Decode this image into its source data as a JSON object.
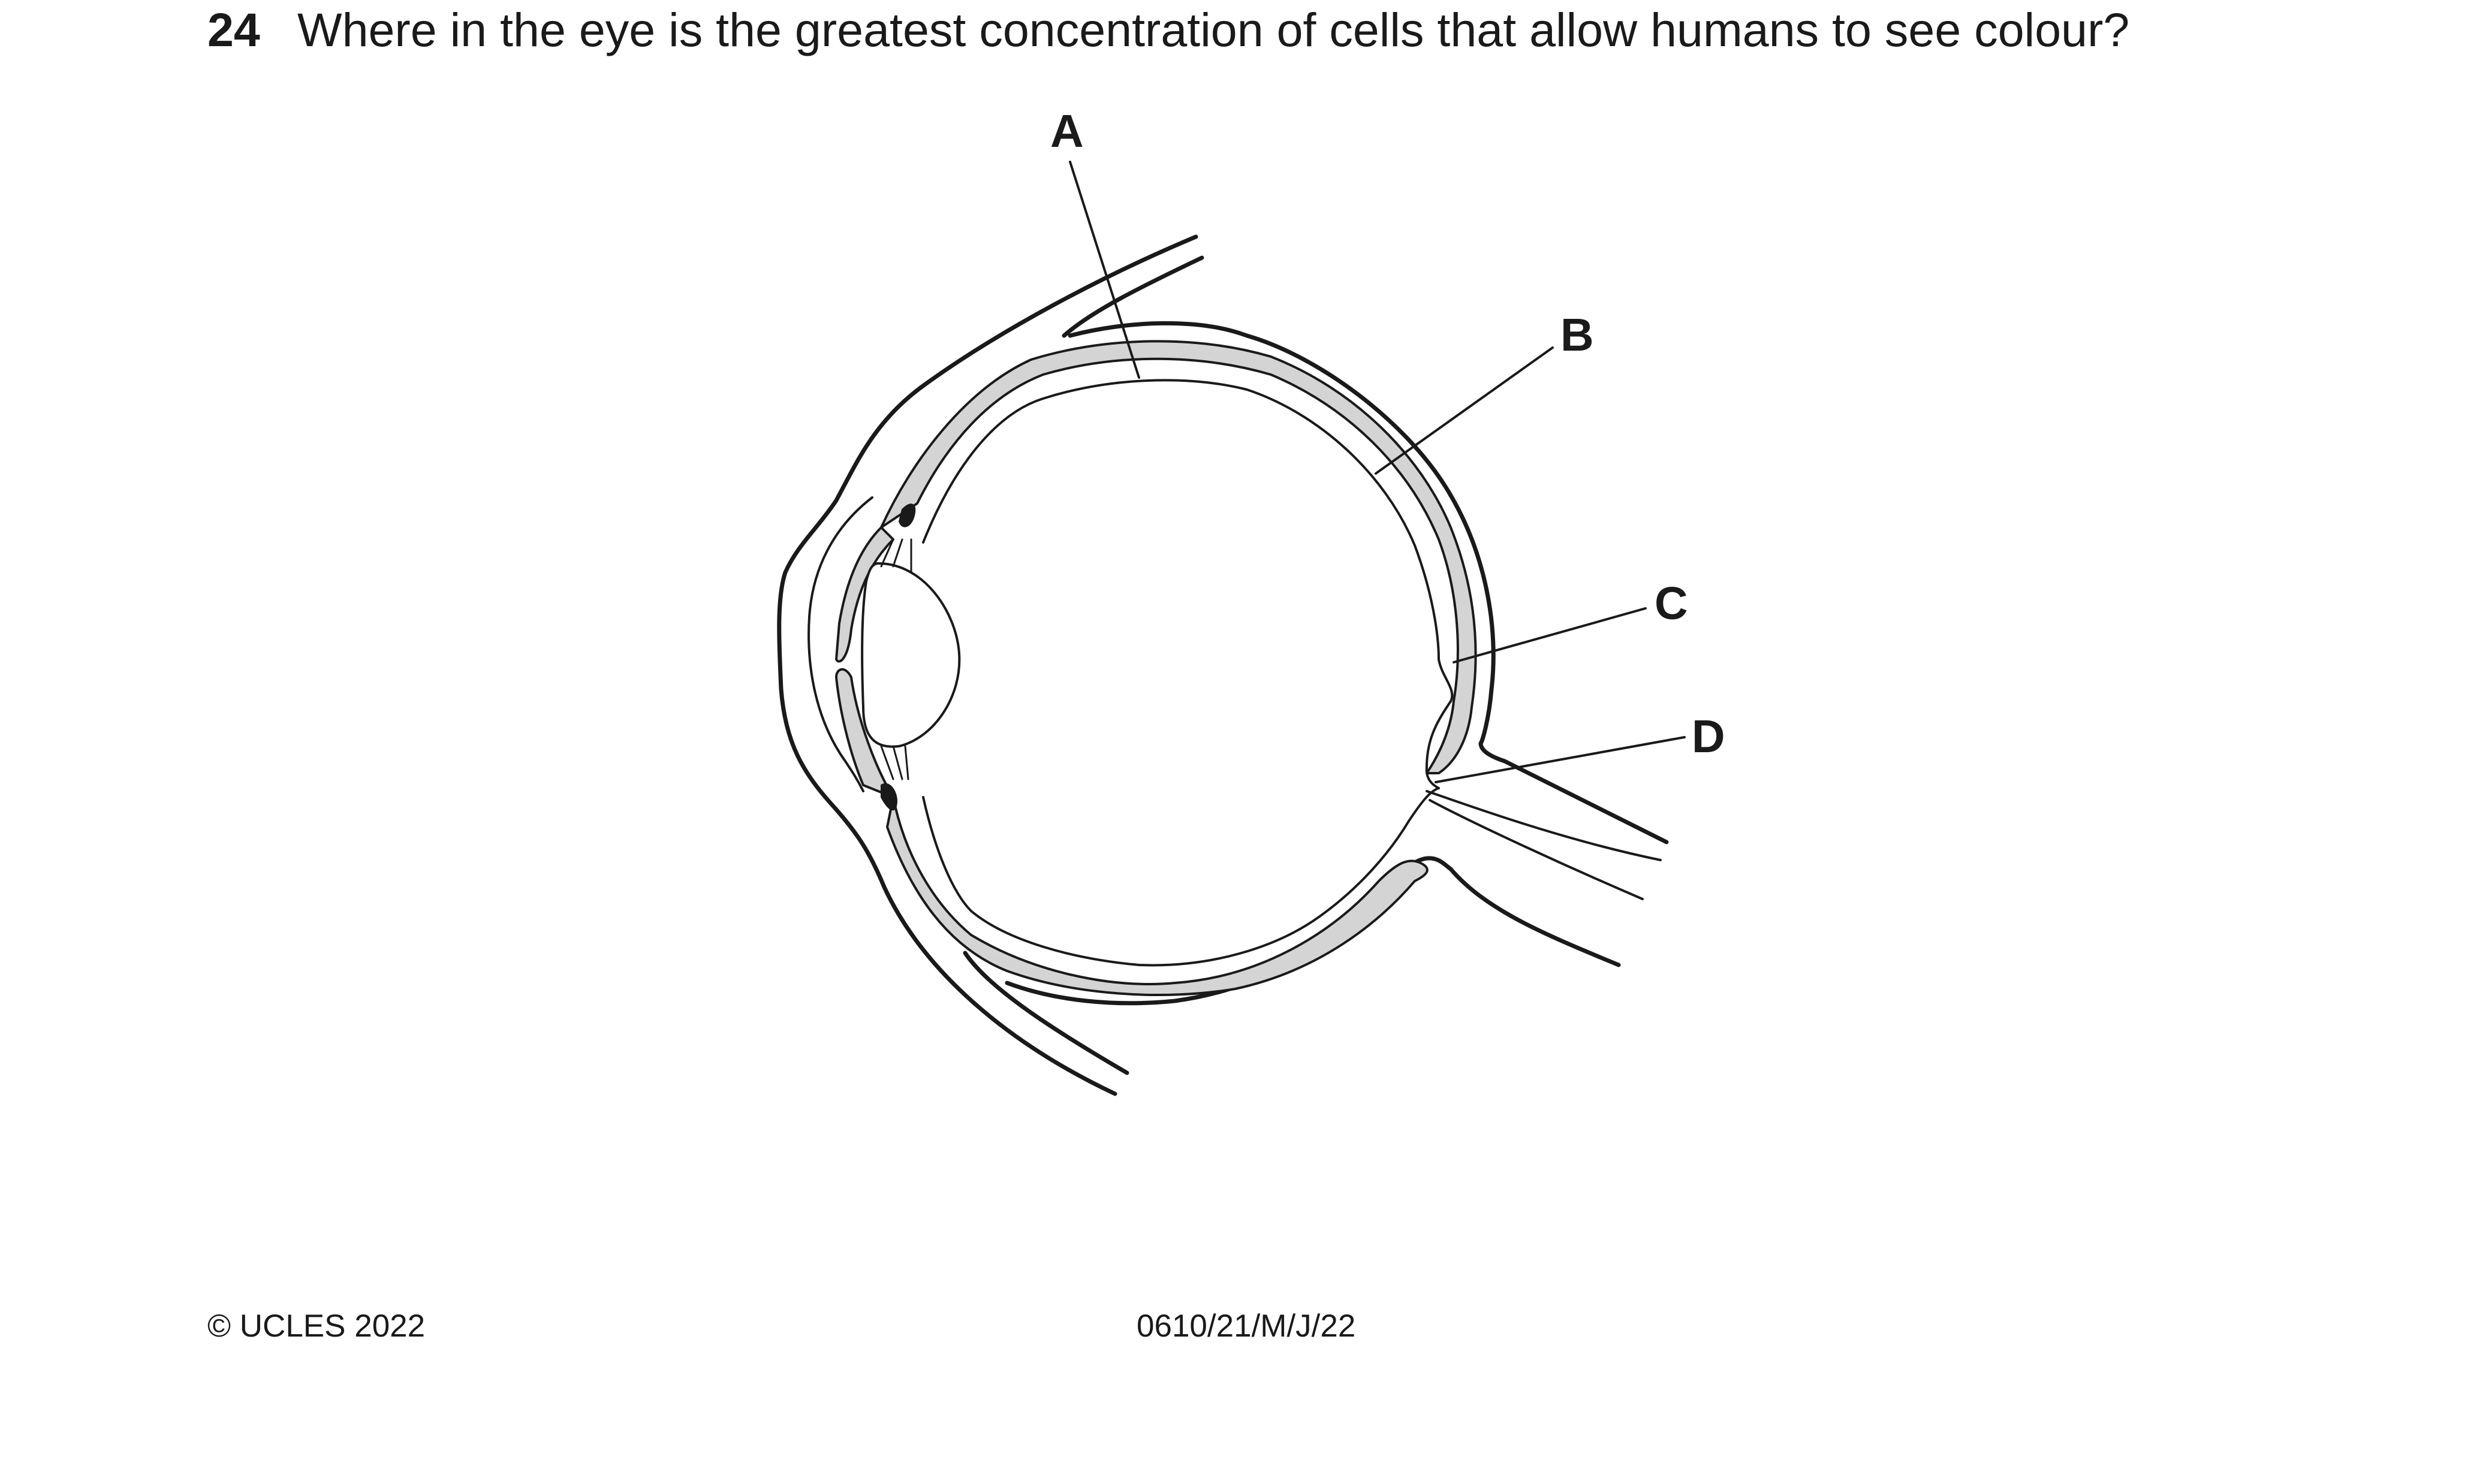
{
  "question": {
    "number": "24",
    "text": "Where in the eye is the greatest concentration of cells that allow humans to see colour?"
  },
  "diagram": {
    "labels": {
      "a": "A",
      "b": "B",
      "c": "C",
      "d": "D"
    }
  },
  "footer": {
    "copyright": "© UCLES 2022",
    "code": "0610/21/M/J/22"
  },
  "colors": {
    "ink": "#1a1a1a",
    "layer_fill": "#d4d4d4",
    "background": "#ffffff"
  }
}
